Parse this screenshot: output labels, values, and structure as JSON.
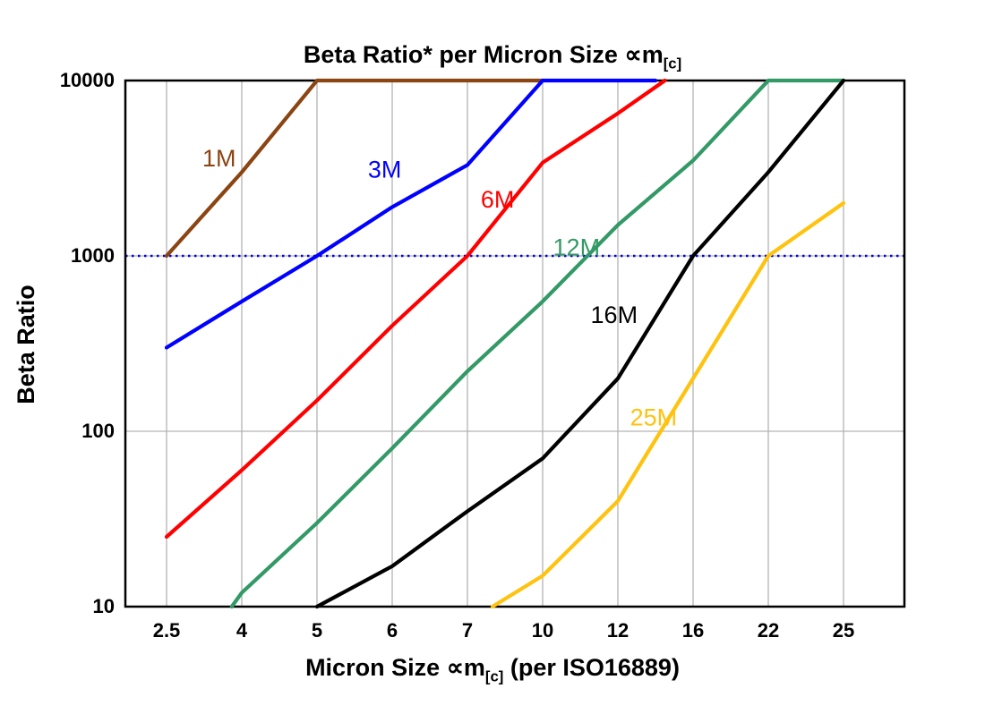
{
  "chart_data": {
    "type": "line",
    "title": {
      "text": "Beta Ratio* per Micron Size ",
      "symbol": "∝m",
      "subscript": "[c]"
    },
    "xlabel": {
      "prefix": "Micron Size ",
      "symbol": "∝m",
      "subscript": "[c]",
      "suffix": " (per ISO16889)"
    },
    "ylabel": "Beta Ratio",
    "x_categories": [
      2.5,
      4,
      5,
      6,
      7,
      10,
      12,
      16,
      22,
      25
    ],
    "x_tick_labels": [
      "2.5",
      "4",
      "5",
      "6",
      "7",
      "10",
      "12",
      "16",
      "22",
      "25"
    ],
    "y_ticks": [
      10,
      100,
      1000,
      10000
    ],
    "y_tick_labels": [
      "10",
      "100",
      "1000",
      "10000"
    ],
    "y_scale": "log",
    "ylim": [
      10,
      10000
    ],
    "grid": true,
    "legend": "inline-labels",
    "reference_line": {
      "y": 1000,
      "color": "#0000dd",
      "style": "dotted"
    },
    "colors": {
      "grid": "#b3b3b3",
      "axis": "#000000"
    },
    "series": [
      {
        "name": "1M",
        "color": "#8B4513",
        "label_pos": {
          "x": 3.55,
          "y": 3600
        },
        "points": [
          [
            2.5,
            1000
          ],
          [
            4,
            3000
          ],
          [
            5,
            10000
          ],
          [
            10,
            10000
          ]
        ]
      },
      {
        "name": "3M",
        "color": "#0000ff",
        "label_pos": {
          "x": 5.9,
          "y": 3100
        },
        "points": [
          [
            2.5,
            300
          ],
          [
            4,
            550
          ],
          [
            5,
            1000
          ],
          [
            6,
            1900
          ],
          [
            7,
            3300
          ],
          [
            10,
            10000
          ],
          [
            14,
            10000
          ]
        ]
      },
      {
        "name": "6M",
        "color": "#ff0000",
        "label_pos": {
          "x": 8.2,
          "y": 2100
        },
        "points": [
          [
            2.5,
            25
          ],
          [
            4,
            60
          ],
          [
            5,
            150
          ],
          [
            6,
            400
          ],
          [
            7,
            1000
          ],
          [
            10,
            3400
          ],
          [
            12,
            6500
          ],
          [
            14.5,
            10000
          ]
        ]
      },
      {
        "name": "12M",
        "color": "#339966",
        "label_pos": {
          "x": 10.9,
          "y": 1120
        },
        "points": [
          [
            3.8,
            10
          ],
          [
            4,
            12
          ],
          [
            5,
            30
          ],
          [
            6,
            80
          ],
          [
            7,
            220
          ],
          [
            10,
            550
          ],
          [
            12,
            1500
          ],
          [
            16,
            3500
          ],
          [
            22,
            10000
          ],
          [
            25,
            10000
          ]
        ]
      },
      {
        "name": "16M",
        "color": "#000000",
        "label_pos": {
          "x": 11.9,
          "y": 460
        },
        "points": [
          [
            5,
            10
          ],
          [
            6,
            17
          ],
          [
            7,
            35
          ],
          [
            10,
            70
          ],
          [
            12,
            200
          ],
          [
            16,
            1000
          ],
          [
            22,
            3000
          ],
          [
            25,
            10000
          ]
        ]
      },
      {
        "name": "25M",
        "color": "#FFC20E",
        "label_pos": {
          "x": 13.9,
          "y": 120
        },
        "points": [
          [
            8,
            10
          ],
          [
            10,
            15
          ],
          [
            12,
            40
          ],
          [
            16,
            200
          ],
          [
            22,
            1000
          ],
          [
            25,
            2000
          ]
        ]
      }
    ]
  }
}
